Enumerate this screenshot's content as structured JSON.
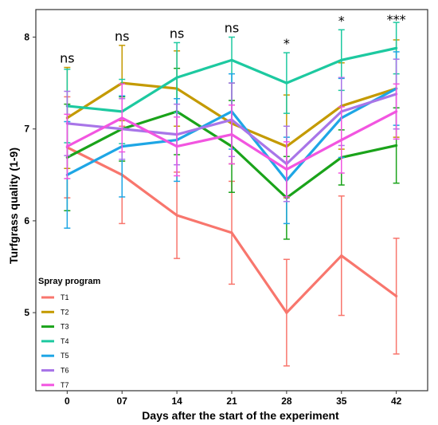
{
  "chart_data": {
    "type": "line",
    "xlabel": "Days after the start of the experiment",
    "ylabel": "Turfgrass quality (1-9)",
    "x": [
      0,
      7,
      14,
      21,
      28,
      35,
      42
    ],
    "x_tick_labels": [
      "0",
      "07",
      "14",
      "21",
      "28",
      "35",
      "42"
    ],
    "y_ticks": [
      5,
      6,
      7,
      8
    ],
    "ylim": [
      4.15,
      8.3
    ],
    "xlim": [
      -4,
      46
    ],
    "significance": [
      "ns",
      "ns",
      "ns",
      "ns",
      "*",
      "*",
      "***"
    ],
    "legend": {
      "title": "Spray program",
      "placement": "bottom-left"
    },
    "series": [
      {
        "name": "T1",
        "color": "#f8766d",
        "values": [
          6.8,
          6.5,
          6.06,
          5.87,
          5.0,
          5.62,
          5.18
        ],
        "errors": [
          0.55,
          0.53,
          0.47,
          0.56,
          0.58,
          0.65,
          0.63
        ]
      },
      {
        "name": "T2",
        "color": "#c49a00",
        "values": [
          7.12,
          7.5,
          7.44,
          7.06,
          6.81,
          7.25,
          7.44
        ],
        "errors": [
          0.55,
          0.41,
          0.41,
          0.44,
          0.56,
          0.47,
          0.53
        ]
      },
      {
        "name": "T3",
        "color": "#1aa31a",
        "values": [
          6.69,
          7.0,
          7.19,
          6.81,
          6.25,
          6.69,
          6.82
        ],
        "errors": [
          0.58,
          0.35,
          0.47,
          0.5,
          0.45,
          0.3,
          0.41
        ]
      },
      {
        "name": "T4",
        "color": "#1dc9a0",
        "values": [
          7.25,
          7.19,
          7.56,
          7.75,
          7.5,
          7.75,
          7.88
        ],
        "errors": [
          0.4,
          0.35,
          0.38,
          0.25,
          0.33,
          0.33,
          0.28
        ]
      },
      {
        "name": "T5",
        "color": "#1ea6e5",
        "values": [
          6.5,
          6.81,
          6.88,
          7.19,
          6.44,
          7.12,
          7.44
        ],
        "errors": [
          0.58,
          0.55,
          0.45,
          0.41,
          0.47,
          0.43,
          0.4
        ]
      },
      {
        "name": "T6",
        "color": "#a875e8",
        "values": [
          7.06,
          7.0,
          6.94,
          7.1,
          6.62,
          7.19,
          7.38
        ],
        "errors": [
          0.35,
          0.33,
          0.33,
          0.4,
          0.41,
          0.37,
          0.38
        ]
      },
      {
        "name": "T7",
        "color": "#f255e0",
        "values": [
          6.81,
          7.12,
          6.81,
          6.94,
          6.56,
          6.88,
          7.19
        ],
        "errors": [
          0.35,
          0.37,
          0.32,
          0.32,
          0.3,
          0.36,
          0.3
        ]
      }
    ]
  }
}
